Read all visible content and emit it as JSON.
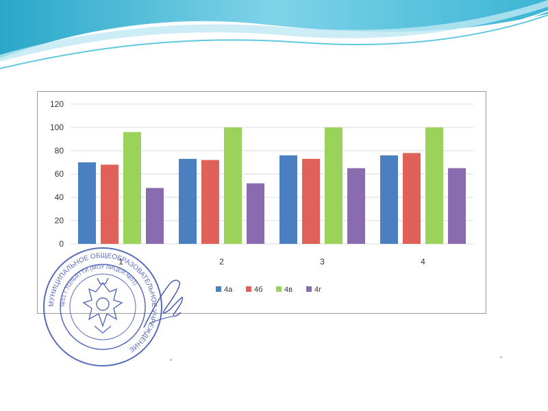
{
  "slide": {
    "background": "#ffffff",
    "wave_colors": [
      "#5ec8e0",
      "#2aa7c9",
      "#bfe9f3",
      "#e8f7fb"
    ]
  },
  "stamp": {
    "color": "#3a4fb0",
    "ring_text": "МУНИЦИПАЛЬНОЕ ОБЩЕОБРАЗОВАТЕЛЬНОЕ УЧРЕЖДЕНИЕ",
    "inner_text": "№51 Г.ТОЛЬЯТТИ (МОУ ЛИЦЕЙ №51)"
  },
  "chart_data": {
    "type": "bar",
    "categories": [
      "1",
      "2",
      "3",
      "4"
    ],
    "series": [
      {
        "name": "4а",
        "color": "#4a7fc1",
        "values": [
          70,
          73,
          76,
          76
        ]
      },
      {
        "name": "4б",
        "color": "#e0615a",
        "values": [
          68,
          72,
          73,
          78
        ]
      },
      {
        "name": "4в",
        "color": "#9bd25a",
        "values": [
          96,
          100,
          100,
          100
        ]
      },
      {
        "name": "4г",
        "color": "#8a6bb0",
        "values": [
          48,
          52,
          65,
          65
        ]
      }
    ],
    "yticks": [
      "0",
      "20",
      "40",
      "60",
      "80",
      "100",
      "120"
    ],
    "ylim": [
      0,
      120
    ],
    "grid": true,
    "legend_position": "bottom"
  }
}
